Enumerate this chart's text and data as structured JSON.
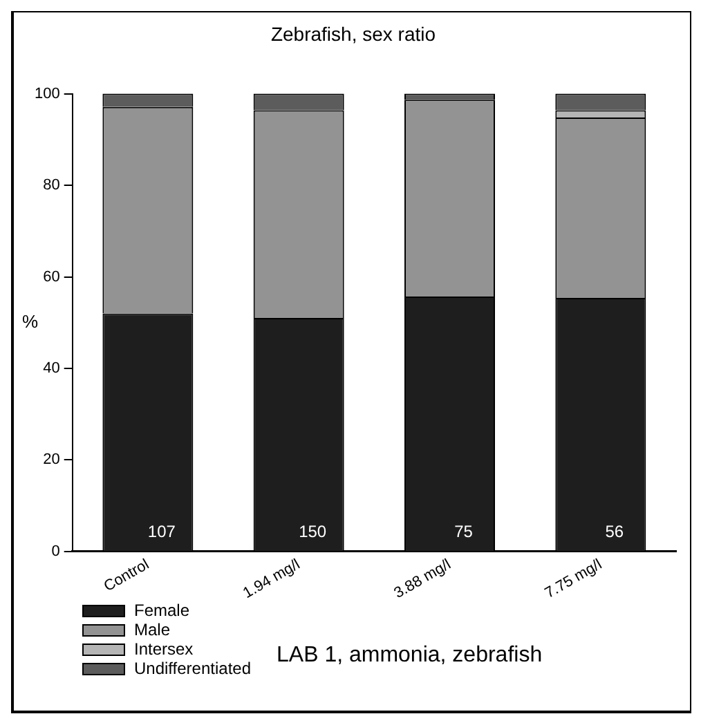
{
  "chart_data": {
    "type": "bar",
    "title": "Zebrafish, sex ratio",
    "ylabel": "%",
    "stacked": true,
    "categories": [
      "Control",
      "1.94 mg/l",
      "3.88 mg/l",
      "7.75 mg/l"
    ],
    "series": [
      {
        "name": "Female",
        "color": "#1e1e1e",
        "values": [
          52,
          51,
          55.7,
          55.4
        ]
      },
      {
        "name": "Male",
        "color": "#939393",
        "values": [
          45.1,
          45.4,
          43,
          39.4
        ]
      },
      {
        "name": "Intersex",
        "color": "#b5b5b5",
        "values": [
          0,
          0,
          0,
          1.6
        ]
      },
      {
        "name": "Undifferentiated",
        "color": "#5c5c5c",
        "values": [
          2.9,
          3.6,
          1.3,
          3.6
        ]
      }
    ],
    "ylim": [
      0,
      100
    ],
    "yticks": [
      0,
      20,
      40,
      60,
      80,
      100
    ],
    "grid": false,
    "legend": "bottom left",
    "annotations": [
      "107",
      "150",
      "75",
      "56",
      "LAB 1, ammonia, zebrafish"
    ]
  }
}
